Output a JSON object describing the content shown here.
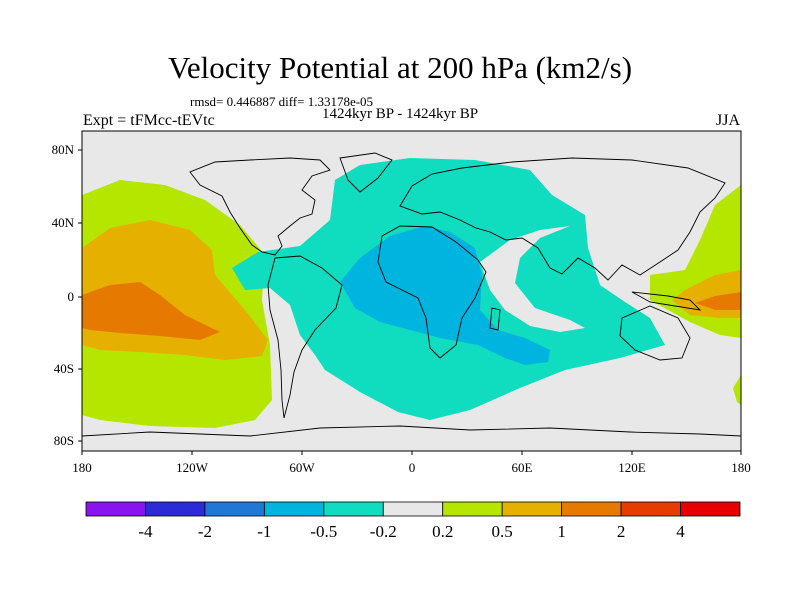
{
  "title": "Velocity Potential at 200 hPa (km2/s)",
  "stats_line": "rmsd= 0.446887 diff= 1.33178e-05",
  "period": "1424kyr BP - 1424kyr BP",
  "experiment": "Expt = tFMcc-tEVtc",
  "season": "JJA",
  "map": {
    "lat_ticks": [
      "80N",
      "40N",
      "0",
      "40S",
      "80S"
    ],
    "lon_ticks": [
      "180",
      "120W",
      "60W",
      "0",
      "60E",
      "120E",
      "180"
    ],
    "background_color": "#e8e8e8"
  },
  "colorbar": {
    "labels": [
      "-4",
      "-2",
      "-1",
      "-0.5",
      "-0.2",
      "0.2",
      "0.5",
      "1",
      "2",
      "4"
    ],
    "colors": [
      "#8a14ee",
      "#2b2bd8",
      "#1f78d8",
      "#00b4e0",
      "#10dcc0",
      "#e8e8e8",
      "#b4e600",
      "#e6b000",
      "#e67a00",
      "#e63c00",
      "#e60000"
    ]
  },
  "fields": {
    "neg_band_color": "#10dcc0",
    "neg_core_color": "#00b4e0",
    "pos_outer_color": "#b4e600",
    "pos_mid_color": "#e6b000",
    "pos_core_color": "#e67a00",
    "coast_color": "#000000"
  }
}
